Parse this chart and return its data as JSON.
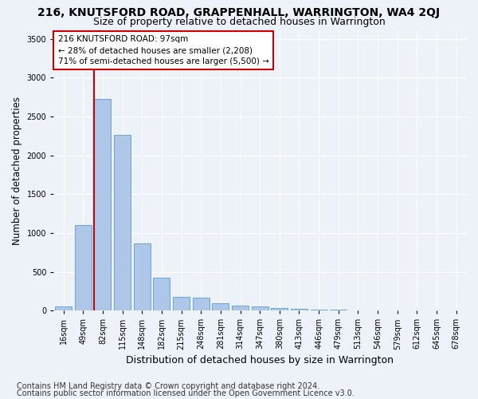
{
  "title_line1": "216, KNUTSFORD ROAD, GRAPPENHALL, WARRINGTON, WA4 2QJ",
  "title_line2": "Size of property relative to detached houses in Warrington",
  "xlabel": "Distribution of detached houses by size in Warrington",
  "ylabel": "Number of detached properties",
  "categories": [
    "16sqm",
    "49sqm",
    "82sqm",
    "115sqm",
    "148sqm",
    "182sqm",
    "215sqm",
    "248sqm",
    "281sqm",
    "314sqm",
    "347sqm",
    "380sqm",
    "413sqm",
    "446sqm",
    "479sqm",
    "513sqm",
    "546sqm",
    "579sqm",
    "612sqm",
    "645sqm",
    "678sqm"
  ],
  "values": [
    50,
    1100,
    2730,
    2260,
    870,
    420,
    175,
    165,
    95,
    60,
    50,
    35,
    25,
    15,
    10,
    5,
    5,
    3,
    2,
    1,
    1
  ],
  "bar_color": "#aec6e8",
  "bar_edge_color": "#5b9bd5",
  "red_line_index": 2,
  "annotation_line1": "216 KNUTSFORD ROAD: 97sqm",
  "annotation_line2": "← 28% of detached houses are smaller (2,208)",
  "annotation_line3": "71% of semi-detached houses are larger (5,500) →",
  "annotation_box_color": "#ffffff",
  "annotation_box_edge": "#cc0000",
  "red_line_color": "#cc0000",
  "ylim": [
    0,
    3600
  ],
  "yticks": [
    0,
    500,
    1000,
    1500,
    2000,
    2500,
    3000,
    3500
  ],
  "footer_line1": "Contains HM Land Registry data © Crown copyright and database right 2024.",
  "footer_line2": "Contains public sector information licensed under the Open Government Licence v3.0.",
  "background_color": "#edf2f9",
  "plot_bg_color": "#edf2f9",
  "grid_color": "#ffffff",
  "title1_fontsize": 10,
  "title2_fontsize": 9,
  "tick_fontsize": 7,
  "ylabel_fontsize": 8.5,
  "xlabel_fontsize": 9,
  "footer_fontsize": 7,
  "ann_fontsize": 7.5
}
